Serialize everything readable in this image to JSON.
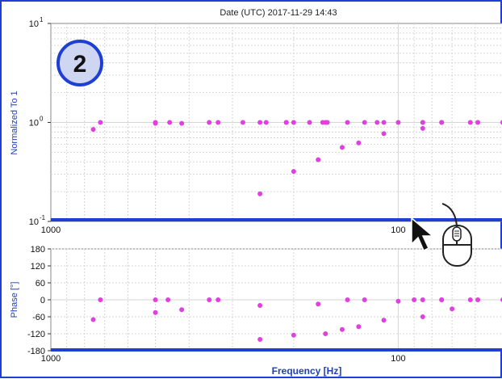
{
  "header": {
    "date_text": "Date (UTC) 2017-11-29 14:43"
  },
  "badge": {
    "label": "2"
  },
  "colors": {
    "frame": "#1f3fd4",
    "axis_label": "#1f3fb8",
    "points": "#e040e0",
    "badge_fill": "#cfd6f2",
    "badge_stroke": "#1f3fd4",
    "grid": "#d6d6d6",
    "band": "#1f3fd4"
  },
  "icons": {
    "cursor": "mouse-pointer-icon",
    "mouse": "mouse-scroll-icon"
  },
  "chart_data": [
    {
      "type": "scatter",
      "title": "",
      "ylabel": "Normalized To 1",
      "xlabel": "",
      "x_scale": "log-reversed",
      "y_scale": "log",
      "xlim": [
        1000,
        50
      ],
      "ylim": [
        0.1,
        10
      ],
      "x_tick_labels": [
        "1000",
        "100"
      ],
      "y_tick_labels": [
        "10",
        "10",
        "10"
      ],
      "y_tick_exponents": [
        "1",
        "0",
        "-1"
      ],
      "grid": true,
      "series": [
        {
          "x": [
            755,
            720,
            500,
            500,
            420,
            350,
            250,
            200,
            162,
            140,
            125,
            115,
            110,
            100,
            85,
            85,
            75,
            75,
            62,
            59,
            50,
            50,
            455,
            330,
            280,
            240,
            210,
            210,
            180,
            165,
            160
          ],
          "y": [
            0.85,
            1.0,
            0.98,
            1.0,
            0.98,
            1.0,
            1.0,
            1.0,
            1.0,
            1.0,
            1.0,
            1.0,
            1.0,
            1.0,
            1.0,
            1.0,
            1.0,
            1.0,
            1.0,
            1.0,
            1.0,
            1.0,
            1.0,
            1.0,
            1.0,
            1.0,
            1.0,
            1.0,
            1.0,
            1.0,
            1.0
          ]
        },
        {
          "x": [
            250,
            200,
            170,
            145,
            130,
            110,
            85
          ],
          "y": [
            0.19,
            0.32,
            0.42,
            0.56,
            0.62,
            0.77,
            0.87
          ]
        }
      ]
    },
    {
      "type": "scatter",
      "title": "",
      "ylabel": "Phase [°]",
      "xlabel": "Frequency [Hz]",
      "x_scale": "log-reversed",
      "xlim": [
        1000,
        50
      ],
      "ylim": [
        -180,
        180
      ],
      "x_tick_labels": [
        "1000",
        "100"
      ],
      "y_ticks": [
        180,
        120,
        60,
        0,
        -60,
        -120,
        -180
      ],
      "y_tick_labels": [
        "180",
        "120",
        "60",
        "0",
        "-60",
        "-120",
        "-180"
      ],
      "grid": true,
      "series": [
        {
          "x": [
            755,
            720,
            500,
            500,
            420,
            350,
            250,
            250,
            200,
            170,
            162,
            145,
            140,
            130,
            125,
            110,
            100,
            90,
            85,
            85,
            75,
            75,
            70,
            62,
            59,
            50,
            45,
            460,
            330
          ],
          "y": [
            -70,
            0,
            -45,
            0,
            -35,
            0,
            -20,
            -140,
            -125,
            -15,
            -120,
            -105,
            0,
            -95,
            0,
            -72,
            -5,
            0,
            -60,
            0,
            0,
            0,
            -32,
            0,
            0,
            0,
            -20,
            0,
            0
          ]
        }
      ]
    }
  ],
  "axis_labels": {
    "top_ylabel": "Normalized To 1",
    "bottom_ylabel": "Phase [°]",
    "bottom_xlabel": "Frequency [Hz]"
  }
}
